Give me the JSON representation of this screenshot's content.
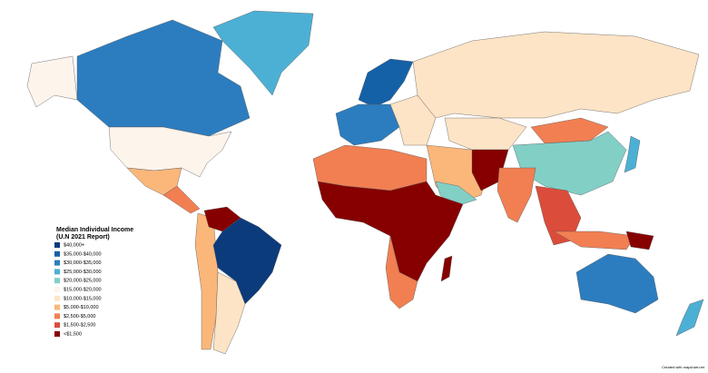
{
  "legend": {
    "title": "Median Individual Income",
    "subtitle": "(U.N 2021 Report)",
    "items": [
      {
        "label": "$40,000+",
        "color": "#0c3b7c"
      },
      {
        "label": "$35,000-$40,000",
        "color": "#1461a8"
      },
      {
        "label": "$30,000-$35,000",
        "color": "#2c7dbf"
      },
      {
        "label": "$25,000-$30,000",
        "color": "#4cb0d5"
      },
      {
        "label": "$20,000-$25,000",
        "color": "#82cfc6"
      },
      {
        "label": "$15,000-$20,000",
        "color": "#fdf4ec"
      },
      {
        "label": "$10,000-$15,000",
        "color": "#fde4c6"
      },
      {
        "label": "$5,000-$10,000",
        "color": "#fbb77a"
      },
      {
        "label": "$2,500-$5,000",
        "color": "#f17f52"
      },
      {
        "label": "$1,500-$2,500",
        "color": "#dc4c3a"
      },
      {
        "label": "<$1,500",
        "color": "#870000"
      }
    ]
  },
  "credit": "Created with mapchart.net"
}
